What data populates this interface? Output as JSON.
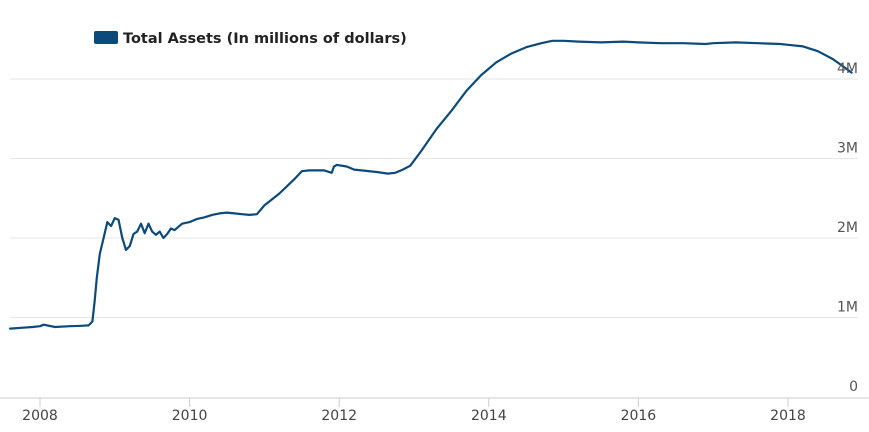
{
  "chart_data": {
    "type": "line",
    "title": "",
    "xlabel": "",
    "ylabel": "",
    "xlim": [
      2007.6,
      2018.85
    ],
    "ylim": [
      0,
      4500000
    ],
    "grid": true,
    "legend_position": "top-left",
    "x_ticks": [
      {
        "value": 2008,
        "label": "2008"
      },
      {
        "value": 2010,
        "label": "2010"
      },
      {
        "value": 2012,
        "label": "2012"
      },
      {
        "value": 2014,
        "label": "2014"
      },
      {
        "value": 2016,
        "label": "2016"
      },
      {
        "value": 2018,
        "label": "2018"
      }
    ],
    "y_ticks": [
      {
        "value": 0,
        "label": "0"
      },
      {
        "value": 1000000,
        "label": "1M"
      },
      {
        "value": 2000000,
        "label": "2M"
      },
      {
        "value": 3000000,
        "label": "3M"
      },
      {
        "value": 4000000,
        "label": "4M"
      }
    ],
    "series": [
      {
        "name": "Total Assets (In millions of dollars)",
        "color": "#0b4a7a",
        "x": [
          2007.6,
          2007.75,
          2007.9,
          2008.0,
          2008.05,
          2008.2,
          2008.4,
          2008.55,
          2008.65,
          2008.7,
          2008.73,
          2008.76,
          2008.8,
          2008.85,
          2008.9,
          2008.95,
          2009.0,
          2009.05,
          2009.1,
          2009.15,
          2009.2,
          2009.25,
          2009.3,
          2009.35,
          2009.4,
          2009.45,
          2009.5,
          2009.55,
          2009.6,
          2009.65,
          2009.7,
          2009.75,
          2009.8,
          2009.9,
          2010.0,
          2010.1,
          2010.2,
          2010.3,
          2010.4,
          2010.5,
          2010.6,
          2010.7,
          2010.8,
          2010.9,
          2011.0,
          2011.2,
          2011.4,
          2011.5,
          2011.6,
          2011.8,
          2011.9,
          2011.93,
          2011.97,
          2012.1,
          2012.2,
          2012.3,
          2012.5,
          2012.65,
          2012.75,
          2012.85,
          2012.95,
          2013.1,
          2013.3,
          2013.5,
          2013.7,
          2013.9,
          2014.1,
          2014.3,
          2014.5,
          2014.7,
          2014.85,
          2015.0,
          2015.2,
          2015.5,
          2015.8,
          2016.0,
          2016.3,
          2016.6,
          2016.9,
          2017.0,
          2017.3,
          2017.6,
          2017.9,
          2018.0,
          2018.2,
          2018.4,
          2018.6,
          2018.75,
          2018.85
        ],
        "values": [
          860000,
          870000,
          880000,
          890000,
          910000,
          880000,
          890000,
          895000,
          900000,
          950000,
          1200000,
          1500000,
          1800000,
          2000000,
          2200000,
          2150000,
          2250000,
          2230000,
          2000000,
          1850000,
          1900000,
          2050000,
          2080000,
          2180000,
          2060000,
          2180000,
          2080000,
          2040000,
          2080000,
          2000000,
          2050000,
          2120000,
          2100000,
          2180000,
          2200000,
          2240000,
          2260000,
          2290000,
          2310000,
          2320000,
          2310000,
          2300000,
          2290000,
          2300000,
          2410000,
          2560000,
          2740000,
          2840000,
          2850000,
          2850000,
          2820000,
          2900000,
          2920000,
          2900000,
          2860000,
          2850000,
          2830000,
          2810000,
          2820000,
          2860000,
          2910000,
          3100000,
          3370000,
          3600000,
          3850000,
          4050000,
          4210000,
          4320000,
          4400000,
          4450000,
          4480000,
          4480000,
          4470000,
          4460000,
          4470000,
          4460000,
          4450000,
          4450000,
          4440000,
          4450000,
          4460000,
          4450000,
          4440000,
          4430000,
          4410000,
          4350000,
          4250000,
          4150000,
          4080000
        ]
      }
    ]
  }
}
